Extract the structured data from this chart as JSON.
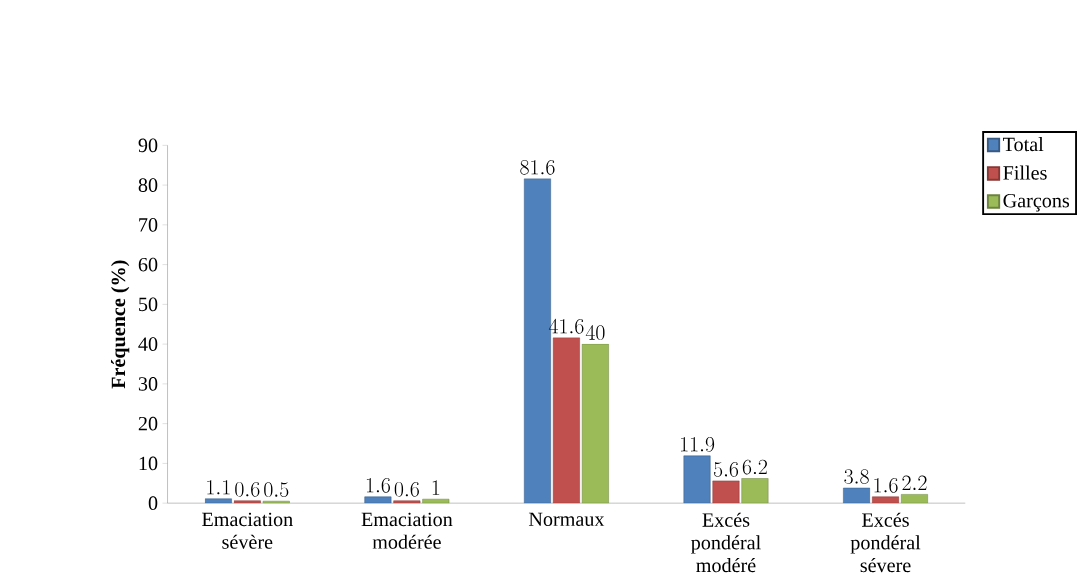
{
  "chart_data": {
    "type": "bar",
    "ylabel": "Fréquence (%)",
    "categories": [
      "Emaciation sévère",
      "Emaciation modérée",
      "Normaux",
      "Excés pondéral modéré",
      "Excés pondéral sévere"
    ],
    "series": [
      {
        "name": "Total",
        "color": "#4f81bd",
        "values": [
          1.1,
          1.6,
          81.6,
          11.9,
          3.8
        ]
      },
      {
        "name": "Filles",
        "color": "#c0504d",
        "values": [
          0.6,
          0.6,
          41.6,
          5.6,
          1.6
        ]
      },
      {
        "name": "Garçons",
        "color": "#9bbb59",
        "values": [
          0.5,
          1,
          40,
          6.2,
          2.2
        ]
      }
    ],
    "ylim": [
      0,
      90
    ],
    "yticks": [
      0,
      10,
      20,
      30,
      40,
      50,
      60,
      70,
      80,
      90
    ],
    "data_labels": true,
    "legend": "top right",
    "grid": false
  }
}
